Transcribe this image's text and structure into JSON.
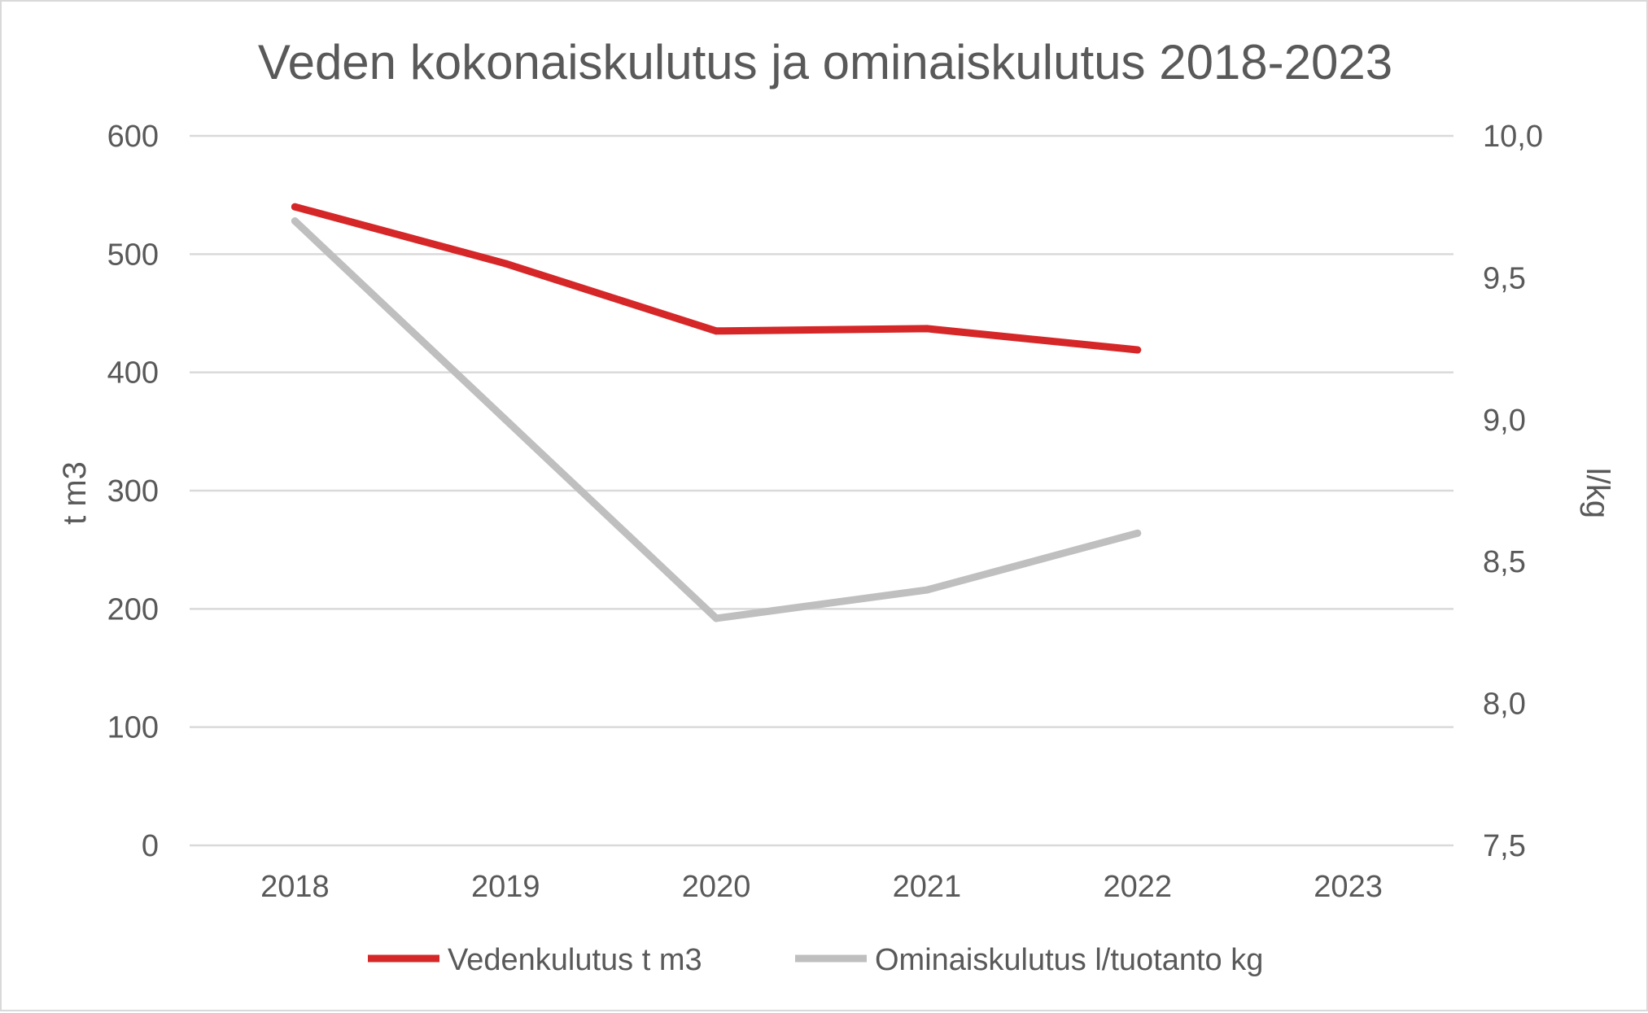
{
  "chart_data": {
    "type": "line",
    "title": "Veden kokonaiskulutus ja ominaiskulutus 2018-2023",
    "categories": [
      "2018",
      "2019",
      "2020",
      "2021",
      "2022",
      "2023"
    ],
    "y_left": {
      "label": "t m3",
      "range": [
        0,
        600
      ],
      "ticks": [
        0,
        100,
        200,
        300,
        400,
        500,
        600
      ],
      "tick_labels": [
        "0",
        "100",
        "200",
        "300",
        "400",
        "500",
        "600"
      ]
    },
    "y_right": {
      "label": "l/kg",
      "range": [
        7.5,
        10.0
      ],
      "ticks": [
        7.5,
        8.0,
        8.5,
        9.0,
        9.5,
        10.0
      ],
      "tick_labels": [
        "7,5",
        "8,0",
        "8,5",
        "9,0",
        "9,5",
        "10,0"
      ]
    },
    "series": [
      {
        "name": "Vedenkulutus t m3",
        "axis": "left",
        "color": "#d62728",
        "values": [
          540,
          492,
          435,
          437,
          419,
          null
        ]
      },
      {
        "name": "Ominaiskulutus l/tuotanto kg",
        "axis": "right",
        "color": "#bfbfbf",
        "values": [
          9.7,
          9.0,
          8.3,
          8.4,
          8.6,
          null
        ]
      }
    ],
    "grid": true,
    "legend_position": "bottom"
  }
}
